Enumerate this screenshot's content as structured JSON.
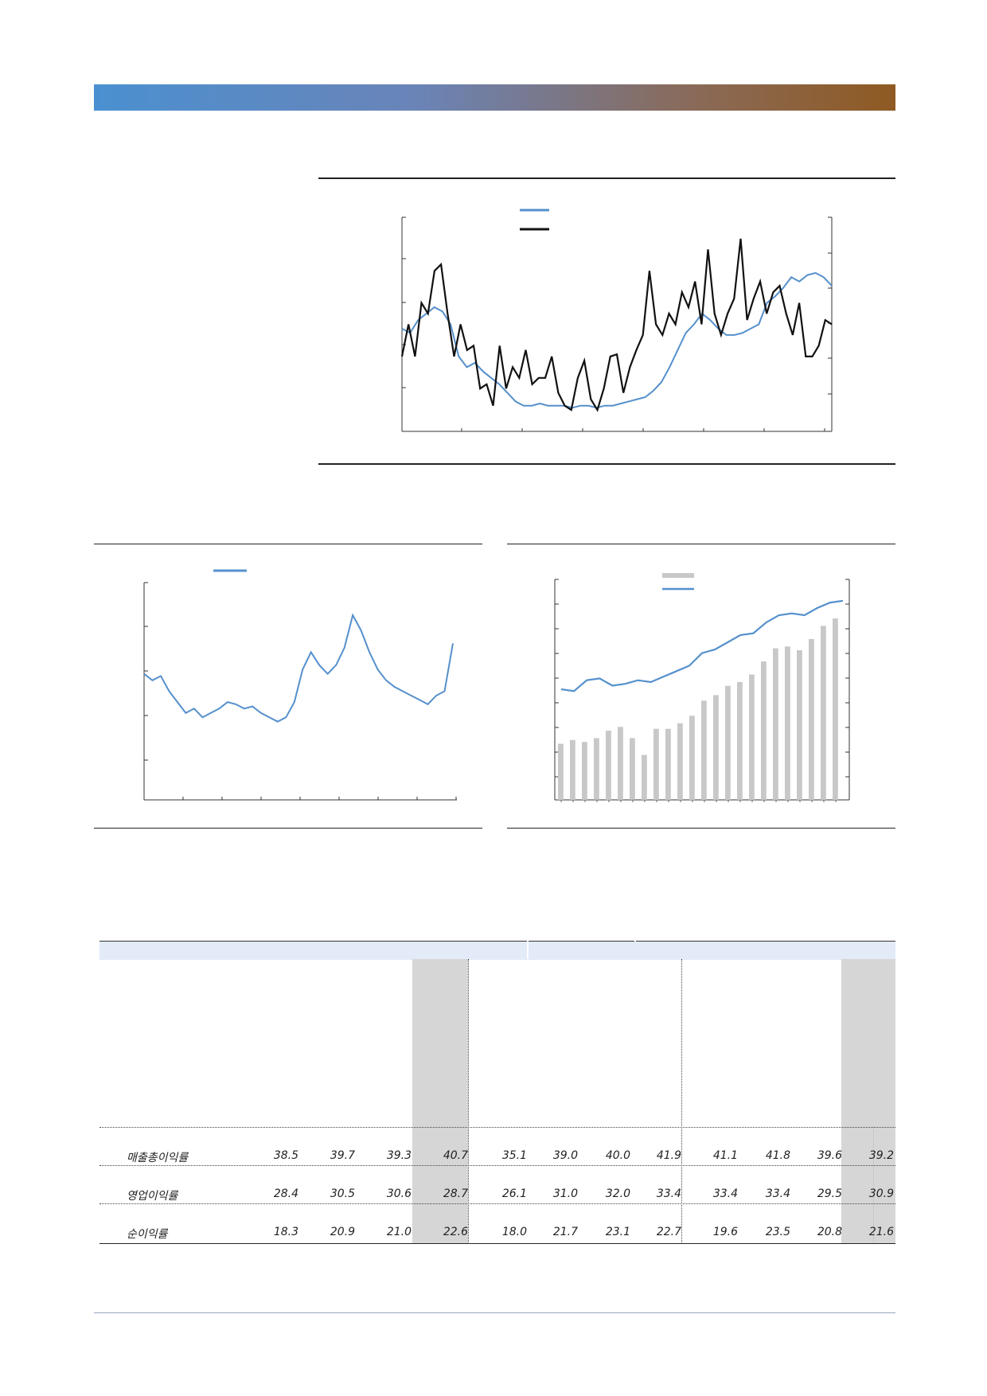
{
  "colors": {
    "blue": "#5590cc",
    "black": "#111111",
    "gray_bar": "#c8c8c8",
    "shade": "#d6d6d6"
  },
  "chart_data": [
    {
      "type": "line",
      "series": [
        {
          "color": "#5590cc",
          "values": [
            0.48,
            0.46,
            0.52,
            0.55,
            0.58,
            0.56,
            0.5,
            0.35,
            0.3,
            0.32,
            0.28,
            0.25,
            0.22,
            0.18,
            0.14,
            0.12,
            0.12,
            0.13,
            0.12,
            0.12,
            0.12,
            0.11,
            0.12,
            0.12,
            0.11,
            0.12,
            0.12,
            0.13,
            0.14,
            0.15,
            0.16,
            0.19,
            0.23,
            0.3,
            0.38,
            0.46,
            0.5,
            0.55,
            0.52,
            0.48,
            0.45,
            0.45,
            0.46,
            0.48,
            0.5,
            0.6,
            0.63,
            0.67,
            0.72,
            0.7,
            0.73,
            0.74,
            0.72,
            0.68
          ]
        },
        {
          "color": "#111111",
          "values": [
            0.35,
            0.5,
            0.35,
            0.6,
            0.55,
            0.75,
            0.78,
            0.55,
            0.35,
            0.5,
            0.38,
            0.4,
            0.2,
            0.22,
            0.12,
            0.4,
            0.2,
            0.3,
            0.25,
            0.38,
            0.22,
            0.25,
            0.25,
            0.35,
            0.18,
            0.12,
            0.1,
            0.25,
            0.33,
            0.15,
            0.1,
            0.2,
            0.35,
            0.36,
            0.18,
            0.3,
            0.38,
            0.45,
            0.75,
            0.5,
            0.45,
            0.55,
            0.5,
            0.65,
            0.58,
            0.7,
            0.5,
            0.85,
            0.55,
            0.45,
            0.55,
            0.62,
            0.9,
            0.52,
            0.62,
            0.7,
            0.55,
            0.65,
            0.68,
            0.55,
            0.45,
            0.6,
            0.35,
            0.35,
            0.4,
            0.52,
            0.5
          ]
        }
      ]
    },
    {
      "type": "line",
      "series": [
        {
          "color": "#5590cc",
          "values": [
            0.58,
            0.55,
            0.57,
            0.5,
            0.45,
            0.4,
            0.42,
            0.38,
            0.4,
            0.42,
            0.45,
            0.44,
            0.42,
            0.43,
            0.4,
            0.38,
            0.36,
            0.38,
            0.45,
            0.6,
            0.68,
            0.62,
            0.58,
            0.62,
            0.7,
            0.85,
            0.78,
            0.68,
            0.6,
            0.55,
            0.52,
            0.5,
            0.48,
            0.46,
            0.44,
            0.48,
            0.5,
            0.72
          ]
        }
      ]
    },
    {
      "type": "bar",
      "bars": [
        0.3,
        0.32,
        0.31,
        0.33,
        0.37,
        0.39,
        0.33,
        0.24,
        0.38,
        0.38,
        0.41,
        0.45,
        0.53,
        0.56,
        0.61,
        0.63,
        0.67,
        0.74,
        0.81,
        0.82,
        0.8,
        0.86,
        0.93,
        0.97
      ],
      "line": [
        0.48,
        0.47,
        0.53,
        0.54,
        0.5,
        0.51,
        0.53,
        0.52,
        0.55,
        0.58,
        0.61,
        0.68,
        0.7,
        0.74,
        0.78,
        0.79,
        0.85,
        0.89,
        0.9,
        0.89,
        0.93,
        0.96,
        0.97
      ]
    }
  ],
  "table": {
    "rows": [
      {
        "label": "매출총이익률",
        "values": [
          "38.5",
          "39.7",
          "39.3",
          "40.7",
          "35.1",
          "39.0",
          "40.0",
          "41.9",
          "41.1",
          "41.8",
          "39.6",
          "39.2"
        ]
      },
      {
        "label": "영업이익률",
        "values": [
          "28.4",
          "30.5",
          "30.6",
          "28.7",
          "26.1",
          "31.0",
          "32.0",
          "33.4",
          "33.4",
          "33.4",
          "29.5",
          "30.9"
        ]
      },
      {
        "label": "순이익률",
        "values": [
          "18.3",
          "20.9",
          "21.0",
          "22.6",
          "18.0",
          "21.7",
          "23.1",
          "22.7",
          "19.6",
          "23.5",
          "20.8",
          "21.6"
        ]
      }
    ]
  }
}
